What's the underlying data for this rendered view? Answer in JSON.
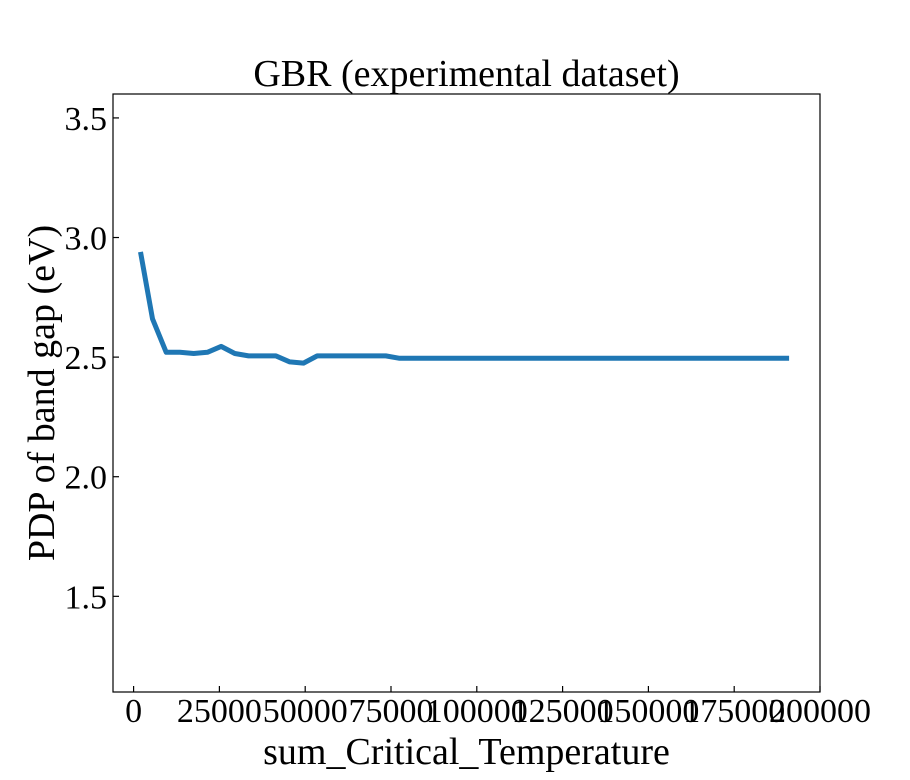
{
  "chart_data": {
    "type": "line",
    "title": "GBR (experimental dataset)",
    "xlabel": "sum_Critical_Temperature",
    "ylabel": "PDP of band gap (eV)",
    "xlim": [
      -6000,
      200000
    ],
    "ylim": [
      1.1,
      3.6
    ],
    "xticks": [
      0,
      25000,
      50000,
      75000,
      100000,
      125000,
      150000,
      175000,
      200000
    ],
    "xtick_labels": [
      "0",
      "25000",
      "50000",
      "75000",
      "100000",
      "125000",
      "150000",
      "175000",
      "200000"
    ],
    "yticks": [
      1.5,
      2.0,
      2.5,
      3.0,
      3.5
    ],
    "ytick_labels": [
      "1.5",
      "2.0",
      "2.5",
      "3.0",
      "3.5"
    ],
    "grid": false,
    "series": [
      {
        "color": "#1f77b4",
        "x": [
          2000,
          5500,
          9500,
          13500,
          17500,
          21500,
          25500,
          29500,
          33500,
          37500,
          41500,
          45500,
          49500,
          53500,
          57500,
          61500,
          65500,
          69500,
          73500,
          77500,
          81500,
          85500,
          90000,
          100000,
          120000,
          140000,
          160000,
          180000,
          191000
        ],
        "y": [
          2.94,
          2.66,
          2.52,
          2.52,
          2.515,
          2.52,
          2.545,
          2.515,
          2.505,
          2.505,
          2.505,
          2.48,
          2.475,
          2.505,
          2.505,
          2.505,
          2.505,
          2.505,
          2.505,
          2.495,
          2.495,
          2.495,
          2.495,
          2.495,
          2.495,
          2.495,
          2.495,
          2.495,
          2.495
        ]
      }
    ]
  }
}
